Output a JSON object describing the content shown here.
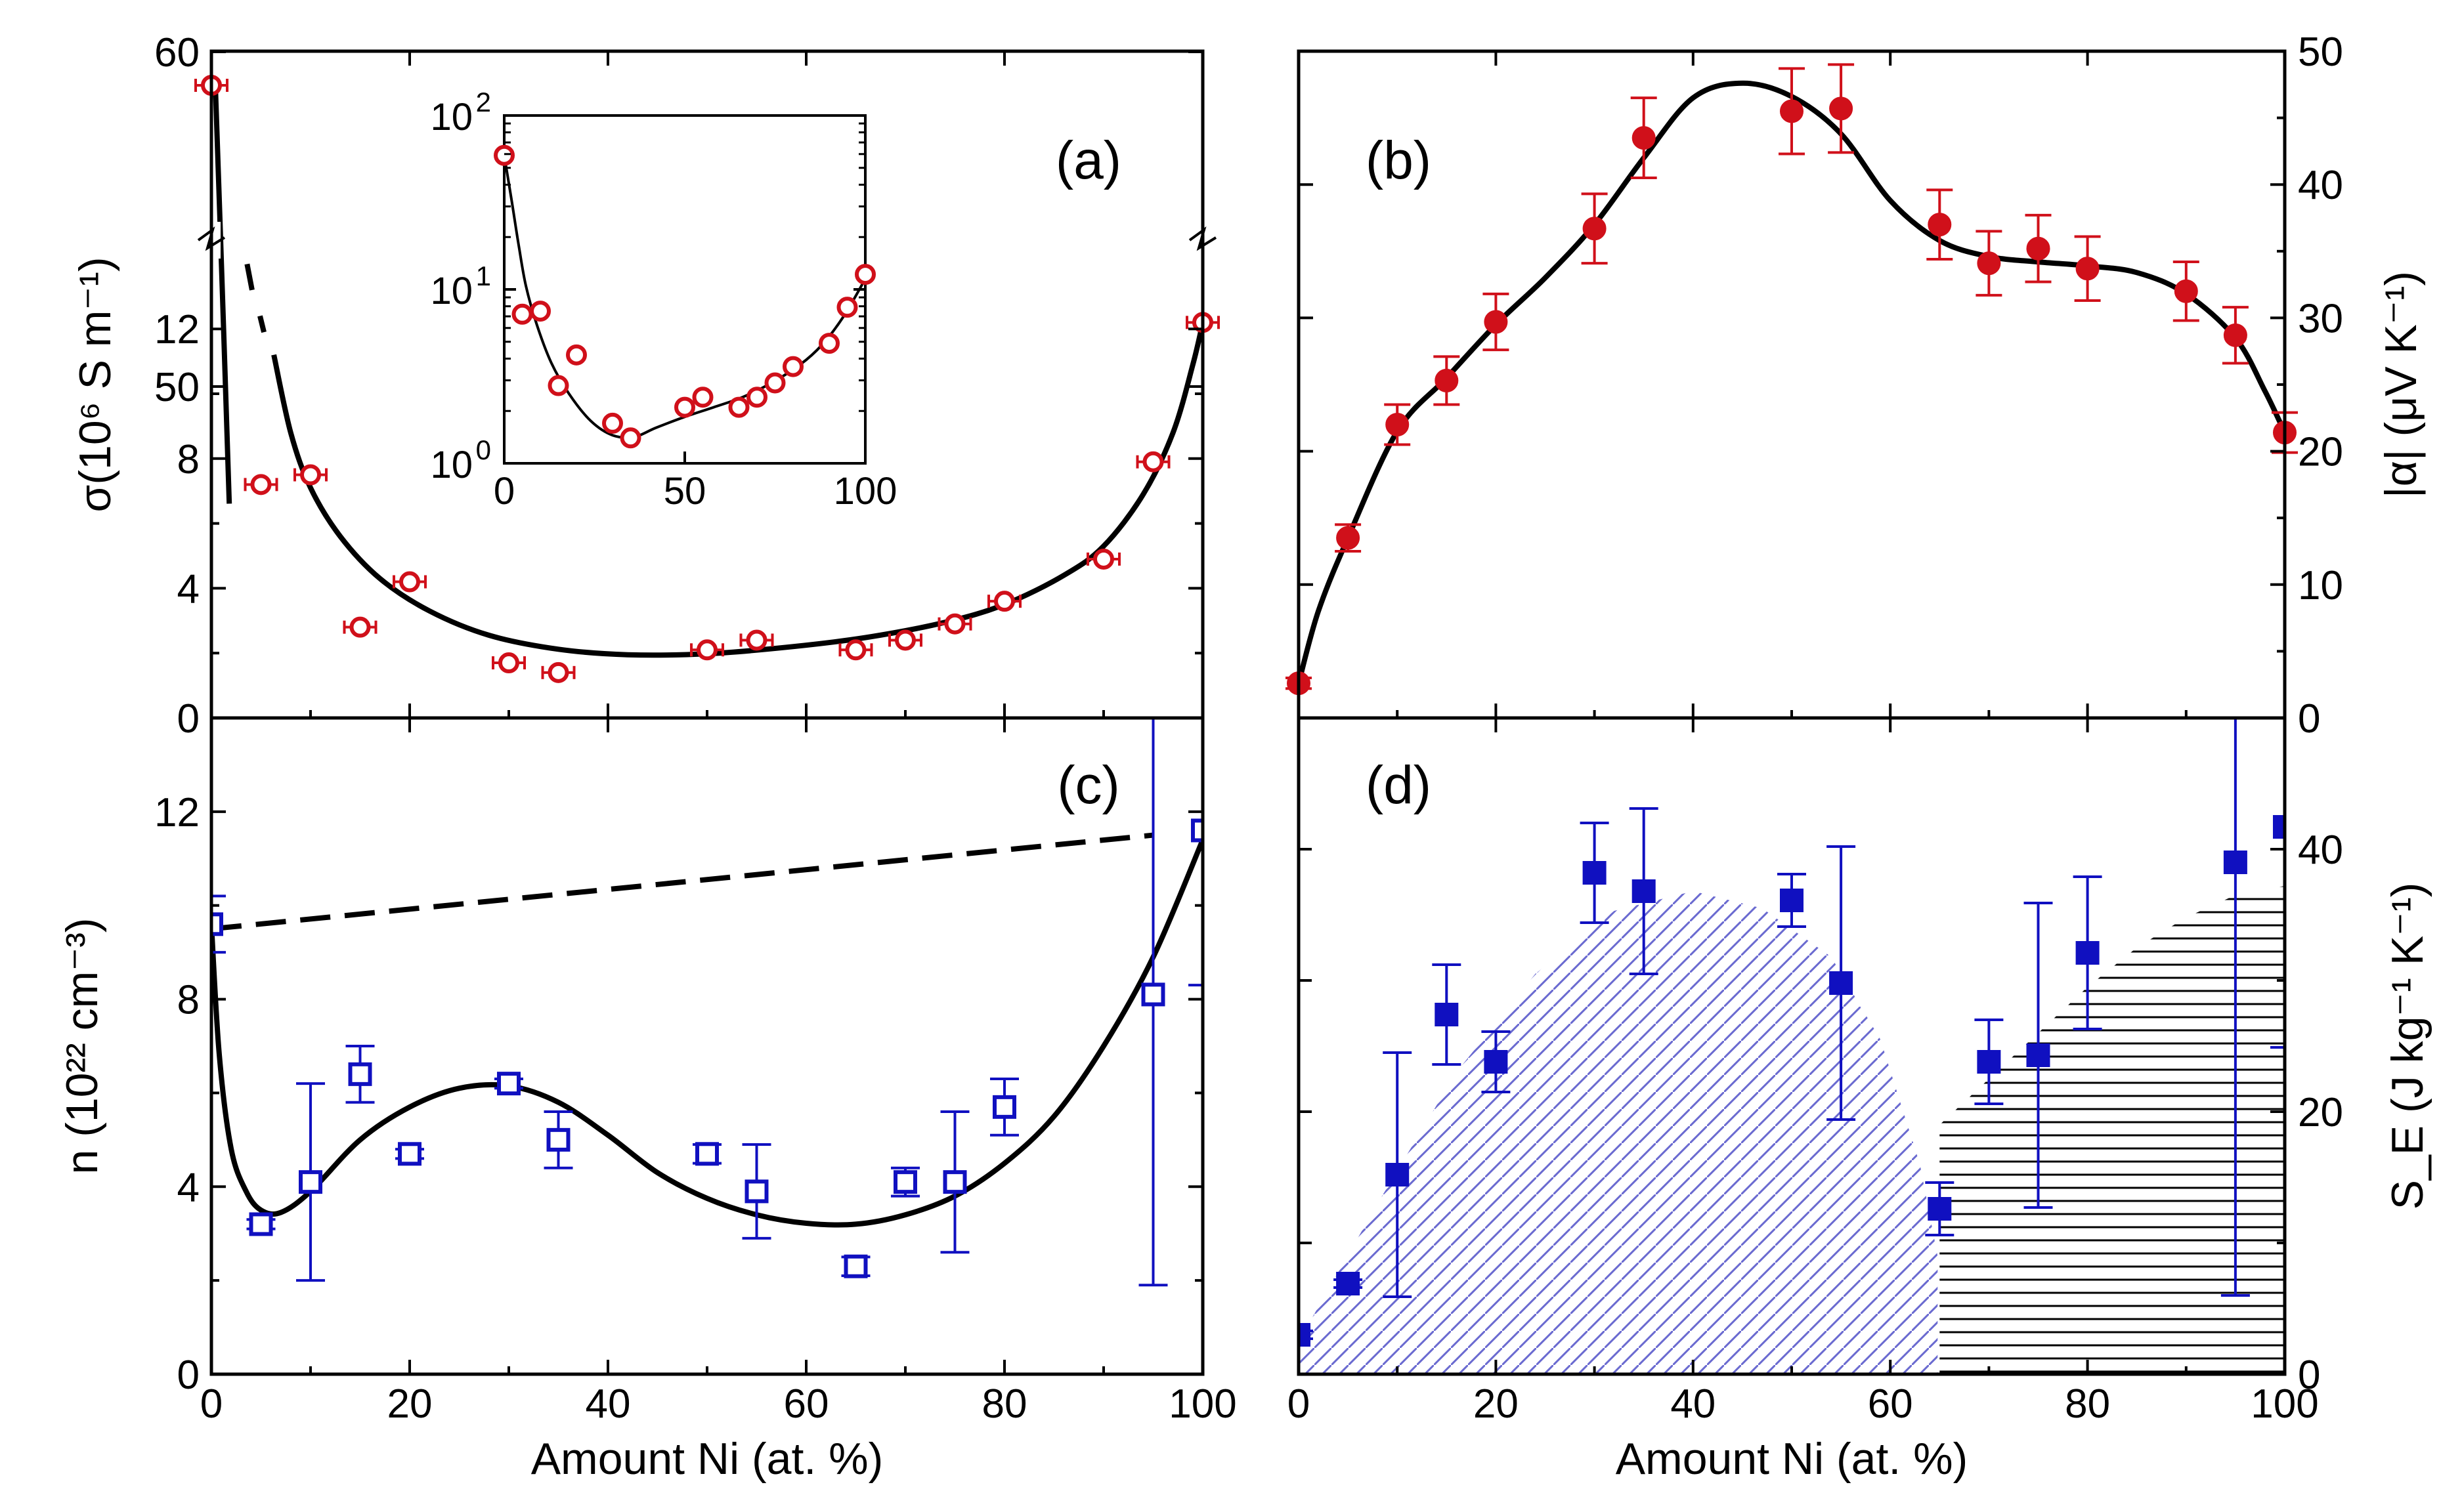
{
  "colors": {
    "red": "#d0101a",
    "blue": "#1010c0",
    "hatch_blue": "#6a6ad0",
    "curve": "#000000"
  },
  "chart_data": [
    {
      "panel": "a",
      "type": "scatter",
      "panel_label": "(a)",
      "ylabel": "σ(10⁶ S m⁻¹)",
      "xlim": [
        0,
        100
      ],
      "y_ticks": [
        "0",
        "4",
        "8",
        "12",
        "50",
        "60"
      ],
      "x_ticks": [
        "0",
        "20",
        "40",
        "60",
        "80",
        "100"
      ],
      "axis_break": "broken y-axis between 14 and 45",
      "x": [
        0,
        5,
        10,
        15,
        20,
        30,
        35,
        50,
        55,
        65,
        70,
        75,
        80,
        90,
        95,
        100
      ],
      "y": [
        59,
        7.2,
        7.5,
        2.8,
        4.2,
        1.7,
        1.4,
        2.1,
        2.4,
        2.1,
        2.4,
        2.9,
        3.6,
        4.9,
        7.9,
        12.2
      ],
      "fit_curve": "solid line, dashed across axis break",
      "inset": {
        "type": "scatter",
        "yscale": "log",
        "x_ticks": [
          "0",
          "50",
          "100"
        ],
        "y_ticks": [
          "10",
          "10",
          "10"
        ],
        "y_tick_exponents": [
          "0",
          "1",
          "2"
        ],
        "x": [
          0,
          5,
          10,
          15,
          20,
          30,
          35,
          50,
          55,
          65,
          70,
          75,
          80,
          90,
          95,
          100
        ],
        "y": [
          59,
          7.2,
          7.5,
          2.8,
          4.2,
          1.7,
          1.4,
          2.1,
          2.4,
          2.1,
          2.4,
          2.9,
          3.6,
          4.9,
          7.9,
          12.2
        ]
      }
    },
    {
      "panel": "b",
      "type": "scatter",
      "panel_label": "(b)",
      "ylabel": "|α| (μV K⁻¹)",
      "xlim": [
        0,
        100
      ],
      "ylim": [
        0,
        50
      ],
      "y_ticks": [
        "0",
        "10",
        "20",
        "30",
        "40",
        "50"
      ],
      "x": [
        0,
        5,
        10,
        15,
        20,
        30,
        35,
        50,
        55,
        65,
        70,
        75,
        80,
        90,
        95,
        100
      ],
      "y": [
        2.6,
        13.5,
        22,
        25.3,
        29.7,
        36.7,
        43.5,
        45.5,
        45.7,
        37,
        34.1,
        35.2,
        33.7,
        32,
        28.7,
        21.4
      ],
      "err": [
        0.4,
        1.0,
        1.5,
        1.8,
        2.1,
        2.6,
        3.0,
        3.2,
        3.3,
        2.6,
        2.4,
        2.5,
        2.4,
        2.2,
        2.1,
        1.5
      ]
    },
    {
      "panel": "c",
      "type": "scatter",
      "panel_label": "(c)",
      "xlabel": "Amount Ni (at. %)",
      "ylabel": "n (10²² cm⁻³)",
      "xlim": [
        0,
        100
      ],
      "ylim": [
        0,
        14
      ],
      "x_ticks": [
        "0",
        "20",
        "40",
        "60",
        "80",
        "100"
      ],
      "y_ticks": [
        "0",
        "4",
        "8",
        "12"
      ],
      "x": [
        0,
        5,
        10,
        15,
        20,
        30,
        35,
        50,
        55,
        65,
        70,
        75,
        80,
        95,
        100
      ],
      "y": [
        9.6,
        3.2,
        4.1,
        6.4,
        4.7,
        6.2,
        5.0,
        4.7,
        3.9,
        2.3,
        4.1,
        4.1,
        5.7,
        8.1,
        11.6
      ],
      "err": [
        0.6,
        0.1,
        2.1,
        0.6,
        0.1,
        0.1,
        0.6,
        0.2,
        1.0,
        0.2,
        0.3,
        1.5,
        0.6,
        6.2,
        3.3
      ],
      "dashed_line": {
        "x": [
          0,
          95
        ],
        "y": [
          9.5,
          11.5
        ]
      }
    },
    {
      "panel": "d",
      "type": "scatter",
      "panel_label": "(d)",
      "xlabel": "Amount Ni (at. %)",
      "ylabel": "S_E (J kg⁻¹ K⁻¹)",
      "xlim": [
        0,
        100
      ],
      "ylim": [
        0,
        50
      ],
      "x_ticks": [
        "0",
        "20",
        "40",
        "60",
        "80",
        "100"
      ],
      "y_ticks": [
        "0",
        "20",
        "40"
      ],
      "x": [
        0,
        5,
        10,
        15,
        20,
        30,
        35,
        50,
        55,
        65,
        70,
        75,
        80,
        95,
        100
      ],
      "y": [
        3.0,
        6.9,
        15.2,
        27.4,
        23.8,
        38.2,
        36.8,
        36.1,
        29.8,
        12.6,
        23.8,
        24.3,
        32.1,
        39.0,
        41.7
      ],
      "err": [
        0.3,
        0.3,
        9.3,
        3.8,
        2.3,
        3.8,
        6.3,
        2.0,
        10.4,
        2.0,
        3.2,
        11.6,
        5.8,
        33.0,
        16.8
      ],
      "shaded_regions": [
        "blue diagonal hatch 0–65 at. %",
        "black horizontal hatch 65–100 at. %"
      ]
    }
  ]
}
